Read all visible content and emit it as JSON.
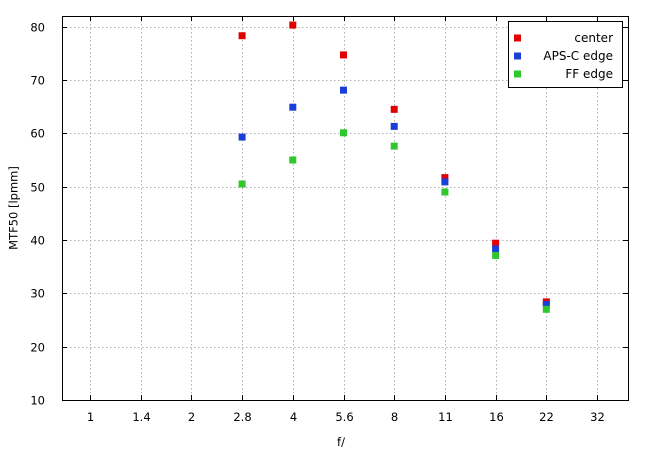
{
  "chart_data": {
    "type": "scatter",
    "title": "",
    "xlabel": "f/",
    "ylabel": "MTF50 [lpmm]",
    "x_categories": [
      "1",
      "1.4",
      "2",
      "2.8",
      "4",
      "5.6",
      "8",
      "11",
      "16",
      "22",
      "32"
    ],
    "ylim": [
      10,
      82
    ],
    "y_ticks": [
      10,
      20,
      30,
      40,
      50,
      60,
      70,
      80
    ],
    "grid": true,
    "legend_position": "top-right",
    "series": [
      {
        "name": "center",
        "color": "#e00000",
        "points": [
          {
            "x": "2.8",
            "y": 78.3
          },
          {
            "x": "4",
            "y": 80.3
          },
          {
            "x": "5.6",
            "y": 74.7
          },
          {
            "x": "8",
            "y": 64.5
          },
          {
            "x": "11",
            "y": 51.7
          },
          {
            "x": "16",
            "y": 39.4
          },
          {
            "x": "22",
            "y": 28.4
          }
        ]
      },
      {
        "name": "APS-C edge",
        "color": "#1a3fd8",
        "points": [
          {
            "x": "2.8",
            "y": 59.3
          },
          {
            "x": "4",
            "y": 64.9
          },
          {
            "x": "5.6",
            "y": 68.1
          },
          {
            "x": "8",
            "y": 61.3
          },
          {
            "x": "11",
            "y": 50.9
          },
          {
            "x": "16",
            "y": 38.3
          },
          {
            "x": "22",
            "y": 27.9
          }
        ]
      },
      {
        "name": "FF edge",
        "color": "#2ec82e",
        "points": [
          {
            "x": "2.8",
            "y": 50.5
          },
          {
            "x": "4",
            "y": 55.0
          },
          {
            "x": "5.6",
            "y": 60.1
          },
          {
            "x": "8",
            "y": 57.6
          },
          {
            "x": "11",
            "y": 49.0
          },
          {
            "x": "16",
            "y": 37.1
          },
          {
            "x": "22",
            "y": 27.0
          }
        ]
      }
    ]
  }
}
